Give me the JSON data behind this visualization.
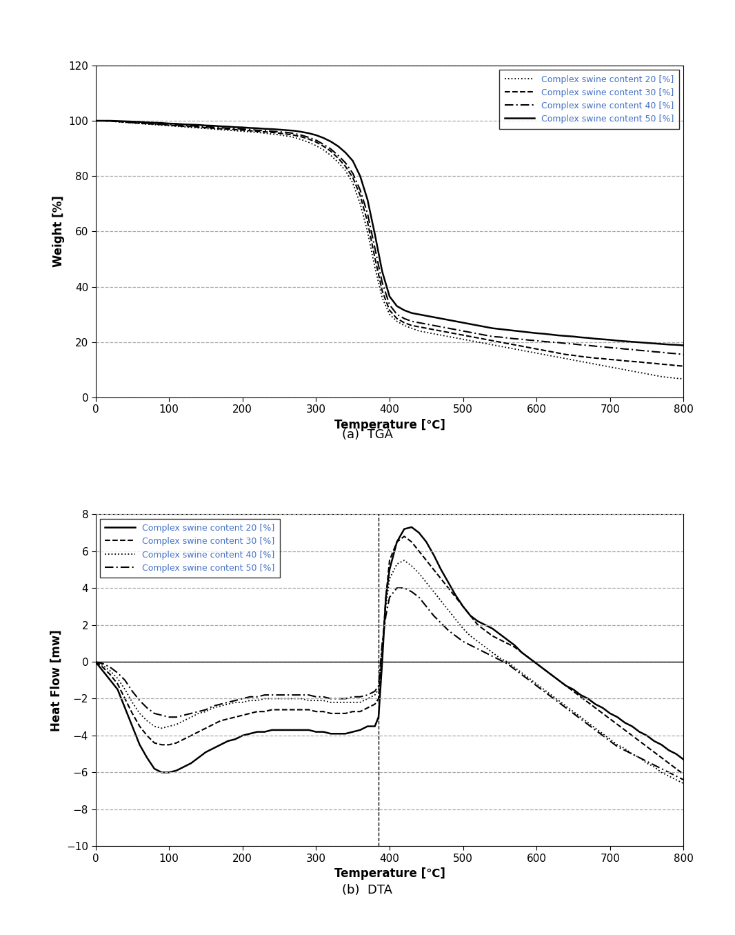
{
  "title_a": "(a)  TGA",
  "title_b": "(b)  DTA",
  "tga_ylabel": "Weight [%]",
  "dta_ylabel": "Heat Flow [mw]",
  "xlabel": "Temperature [℃]",
  "tga_ylim": [
    0,
    120
  ],
  "tga_yticks": [
    0,
    20,
    40,
    60,
    80,
    100,
    120
  ],
  "dta_ylim": [
    -10,
    8
  ],
  "dta_yticks": [
    -10,
    -8,
    -6,
    -4,
    -2,
    0,
    2,
    4,
    6,
    8
  ],
  "xlim": [
    0,
    800
  ],
  "xticks": [
    0,
    100,
    200,
    300,
    400,
    500,
    600,
    700,
    800
  ],
  "legend_labels": [
    "Complex swine content 20 [%]",
    "Complex swine content 30 [%]",
    "Complex swine content 40 [%]",
    "Complex swine content 50 [%]"
  ],
  "line_color": "#000000",
  "legend_text_color": "#4472c4",
  "background_color": "#ffffff",
  "grid_color": "#aaaaaa",
  "vertical_line_x": 385,
  "tga_data": {
    "x": [
      0,
      10,
      20,
      30,
      40,
      50,
      60,
      70,
      80,
      90,
      100,
      110,
      120,
      130,
      140,
      150,
      160,
      170,
      180,
      190,
      200,
      210,
      220,
      230,
      240,
      250,
      260,
      270,
      280,
      290,
      300,
      310,
      320,
      330,
      340,
      350,
      360,
      370,
      380,
      390,
      400,
      410,
      420,
      430,
      440,
      450,
      460,
      470,
      480,
      490,
      500,
      510,
      520,
      530,
      540,
      550,
      560,
      570,
      580,
      590,
      600,
      610,
      620,
      630,
      640,
      650,
      660,
      670,
      680,
      690,
      700,
      710,
      720,
      730,
      740,
      750,
      760,
      770,
      780,
      790,
      800
    ],
    "y20": [
      100,
      100,
      99.8,
      99.6,
      99.4,
      99.2,
      99.0,
      98.8,
      98.6,
      98.4,
      98.2,
      98.0,
      97.8,
      97.6,
      97.4,
      97.2,
      97.0,
      96.8,
      96.6,
      96.4,
      96.2,
      96.0,
      95.8,
      95.5,
      95.2,
      94.9,
      94.5,
      94.0,
      93.2,
      92.2,
      91.0,
      89.5,
      87.5,
      85.0,
      82.0,
      77.5,
      70.0,
      60.0,
      47.0,
      36.0,
      30.0,
      27.5,
      26.0,
      25.0,
      24.0,
      23.5,
      23.0,
      22.5,
      22.0,
      21.5,
      21.0,
      20.5,
      20.0,
      19.5,
      19.0,
      18.5,
      18.0,
      17.5,
      17.0,
      16.5,
      16.0,
      15.5,
      15.0,
      14.5,
      14.0,
      13.5,
      13.0,
      12.5,
      12.0,
      11.5,
      11.0,
      10.5,
      10.0,
      9.5,
      9.0,
      8.5,
      8.0,
      7.5,
      7.2,
      6.9,
      6.7
    ],
    "y30": [
      100,
      100,
      99.9,
      99.7,
      99.5,
      99.3,
      99.1,
      98.9,
      98.8,
      98.6,
      98.4,
      98.2,
      98.0,
      97.9,
      97.7,
      97.5,
      97.3,
      97.1,
      97.0,
      96.8,
      96.6,
      96.4,
      96.2,
      96.0,
      95.8,
      95.5,
      95.2,
      94.8,
      94.2,
      93.4,
      92.3,
      90.8,
      89.0,
      86.5,
      83.5,
      79.5,
      73.0,
      63.5,
      50.5,
      38.5,
      31.5,
      28.5,
      27.0,
      26.0,
      25.5,
      25.0,
      24.5,
      24.0,
      23.5,
      23.0,
      22.5,
      22.0,
      21.5,
      21.0,
      20.5,
      20.0,
      19.5,
      19.0,
      18.5,
      18.0,
      17.5,
      17.0,
      16.5,
      16.0,
      15.5,
      15.2,
      14.8,
      14.5,
      14.2,
      14.0,
      13.7,
      13.5,
      13.2,
      13.0,
      12.8,
      12.5,
      12.3,
      12.0,
      11.8,
      11.5,
      11.3
    ],
    "y40": [
      100,
      100,
      99.9,
      99.8,
      99.6,
      99.4,
      99.3,
      99.1,
      99.0,
      98.8,
      98.6,
      98.5,
      98.3,
      98.2,
      98.0,
      97.8,
      97.7,
      97.5,
      97.3,
      97.2,
      97.0,
      96.8,
      96.6,
      96.4,
      96.2,
      96.0,
      95.8,
      95.4,
      94.8,
      94.0,
      93.0,
      91.5,
      89.8,
      87.5,
      84.8,
      81.0,
      75.0,
      66.5,
      54.0,
      41.5,
      33.5,
      30.0,
      28.5,
      27.5,
      27.0,
      26.5,
      26.0,
      25.5,
      25.0,
      24.5,
      24.0,
      23.5,
      23.0,
      22.5,
      22.0,
      21.8,
      21.5,
      21.2,
      21.0,
      20.7,
      20.5,
      20.2,
      20.0,
      19.8,
      19.5,
      19.3,
      19.0,
      18.8,
      18.5,
      18.3,
      18.0,
      17.8,
      17.5,
      17.3,
      17.0,
      16.8,
      16.5,
      16.3,
      16.0,
      15.8,
      15.5
    ],
    "y50": [
      100,
      100,
      100,
      99.9,
      99.8,
      99.7,
      99.6,
      99.4,
      99.3,
      99.2,
      99.0,
      98.9,
      98.7,
      98.6,
      98.5,
      98.3,
      98.2,
      98.0,
      97.9,
      97.7,
      97.6,
      97.4,
      97.3,
      97.1,
      97.0,
      96.8,
      96.6,
      96.4,
      96.0,
      95.5,
      94.8,
      93.8,
      92.5,
      90.8,
      88.5,
      85.5,
      80.0,
      71.5,
      59.0,
      45.5,
      36.5,
      33.0,
      31.5,
      30.5,
      30.0,
      29.5,
      29.0,
      28.5,
      28.0,
      27.5,
      27.0,
      26.5,
      26.0,
      25.5,
      25.0,
      24.7,
      24.4,
      24.1,
      23.8,
      23.5,
      23.2,
      23.0,
      22.7,
      22.4,
      22.2,
      22.0,
      21.7,
      21.5,
      21.2,
      21.0,
      20.8,
      20.5,
      20.3,
      20.1,
      19.9,
      19.7,
      19.5,
      19.3,
      19.1,
      19.0,
      18.8
    ]
  },
  "dta_data": {
    "x": [
      0,
      10,
      20,
      30,
      40,
      50,
      60,
      70,
      80,
      90,
      100,
      110,
      120,
      130,
      140,
      150,
      160,
      170,
      180,
      190,
      200,
      210,
      220,
      230,
      240,
      250,
      260,
      270,
      280,
      290,
      300,
      310,
      320,
      330,
      340,
      350,
      360,
      370,
      380,
      385,
      390,
      395,
      400,
      410,
      420,
      430,
      440,
      450,
      460,
      470,
      480,
      490,
      500,
      510,
      520,
      530,
      540,
      550,
      560,
      570,
      580,
      590,
      600,
      610,
      620,
      630,
      640,
      650,
      660,
      670,
      680,
      690,
      700,
      710,
      720,
      730,
      740,
      750,
      760,
      770,
      780,
      790,
      800
    ],
    "y20": [
      0,
      -0.5,
      -1.0,
      -1.5,
      -2.5,
      -3.5,
      -4.5,
      -5.2,
      -5.8,
      -6.0,
      -6.0,
      -5.9,
      -5.7,
      -5.5,
      -5.2,
      -4.9,
      -4.7,
      -4.5,
      -4.3,
      -4.2,
      -4.0,
      -3.9,
      -3.8,
      -3.8,
      -3.7,
      -3.7,
      -3.7,
      -3.7,
      -3.7,
      -3.7,
      -3.8,
      -3.8,
      -3.9,
      -3.9,
      -3.9,
      -3.8,
      -3.7,
      -3.5,
      -3.5,
      -3.0,
      0.0,
      3.5,
      5.0,
      6.5,
      7.2,
      7.3,
      7.0,
      6.5,
      5.8,
      5.0,
      4.3,
      3.6,
      3.0,
      2.5,
      2.2,
      2.0,
      1.8,
      1.5,
      1.2,
      0.9,
      0.5,
      0.2,
      -0.1,
      -0.4,
      -0.7,
      -1.0,
      -1.3,
      -1.5,
      -1.8,
      -2.0,
      -2.3,
      -2.5,
      -2.8,
      -3.0,
      -3.3,
      -3.5,
      -3.8,
      -4.0,
      -4.3,
      -4.5,
      -4.8,
      -5.0,
      -5.3
    ],
    "y30": [
      0,
      -0.3,
      -0.7,
      -1.2,
      -2.0,
      -2.8,
      -3.5,
      -4.0,
      -4.4,
      -4.5,
      -4.5,
      -4.4,
      -4.2,
      -4.0,
      -3.8,
      -3.6,
      -3.4,
      -3.2,
      -3.1,
      -3.0,
      -2.9,
      -2.8,
      -2.7,
      -2.7,
      -2.6,
      -2.6,
      -2.6,
      -2.6,
      -2.6,
      -2.6,
      -2.7,
      -2.7,
      -2.8,
      -2.8,
      -2.8,
      -2.7,
      -2.7,
      -2.5,
      -2.3,
      -2.0,
      0.5,
      3.5,
      5.5,
      6.5,
      6.8,
      6.5,
      6.0,
      5.5,
      5.0,
      4.5,
      4.0,
      3.5,
      3.0,
      2.5,
      2.0,
      1.7,
      1.4,
      1.2,
      1.0,
      0.8,
      0.5,
      0.2,
      -0.1,
      -0.4,
      -0.7,
      -1.0,
      -1.3,
      -1.6,
      -1.9,
      -2.2,
      -2.5,
      -2.8,
      -3.1,
      -3.4,
      -3.7,
      -4.0,
      -4.3,
      -4.6,
      -4.9,
      -5.2,
      -5.5,
      -5.8,
      -6.1
    ],
    "y40": [
      0,
      -0.2,
      -0.5,
      -0.9,
      -1.5,
      -2.2,
      -2.8,
      -3.2,
      -3.5,
      -3.6,
      -3.5,
      -3.4,
      -3.2,
      -3.0,
      -2.8,
      -2.7,
      -2.5,
      -2.4,
      -2.3,
      -2.2,
      -2.2,
      -2.1,
      -2.1,
      -2.0,
      -2.0,
      -2.0,
      -2.0,
      -2.0,
      -2.0,
      -2.1,
      -2.1,
      -2.1,
      -2.2,
      -2.2,
      -2.2,
      -2.2,
      -2.2,
      -2.0,
      -1.8,
      -1.5,
      0.8,
      3.0,
      4.5,
      5.3,
      5.5,
      5.2,
      4.8,
      4.3,
      3.8,
      3.3,
      2.8,
      2.3,
      1.8,
      1.4,
      1.1,
      0.8,
      0.5,
      0.2,
      0.0,
      -0.3,
      -0.6,
      -0.9,
      -1.2,
      -1.5,
      -1.8,
      -2.1,
      -2.4,
      -2.7,
      -3.0,
      -3.3,
      -3.6,
      -3.9,
      -4.2,
      -4.5,
      -4.7,
      -5.0,
      -5.2,
      -5.5,
      -5.7,
      -6.0,
      -6.2,
      -6.4,
      -6.6
    ],
    "y50": [
      0,
      -0.1,
      -0.3,
      -0.6,
      -1.0,
      -1.6,
      -2.1,
      -2.5,
      -2.8,
      -2.9,
      -3.0,
      -3.0,
      -2.9,
      -2.8,
      -2.7,
      -2.6,
      -2.4,
      -2.3,
      -2.2,
      -2.1,
      -2.0,
      -1.9,
      -1.9,
      -1.8,
      -1.8,
      -1.8,
      -1.8,
      -1.8,
      -1.8,
      -1.8,
      -1.9,
      -1.9,
      -2.0,
      -2.0,
      -2.0,
      -1.9,
      -1.9,
      -1.8,
      -1.6,
      -1.3,
      1.0,
      2.5,
      3.5,
      4.0,
      4.0,
      3.8,
      3.5,
      3.0,
      2.5,
      2.1,
      1.7,
      1.4,
      1.1,
      0.9,
      0.7,
      0.5,
      0.3,
      0.1,
      -0.1,
      -0.4,
      -0.7,
      -1.0,
      -1.3,
      -1.6,
      -1.9,
      -2.2,
      -2.5,
      -2.8,
      -3.1,
      -3.4,
      -3.7,
      -4.0,
      -4.3,
      -4.6,
      -4.8,
      -5.0,
      -5.2,
      -5.4,
      -5.6,
      -5.8,
      -6.0,
      -6.2,
      -6.4
    ]
  }
}
